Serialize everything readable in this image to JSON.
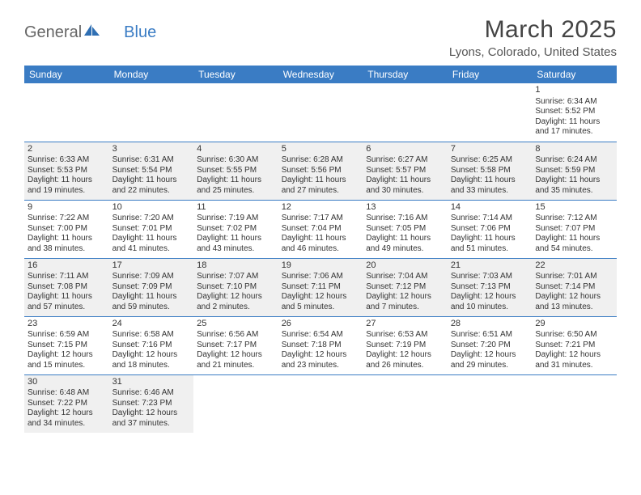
{
  "logo": {
    "text_general": "General",
    "text_blue": "Blue"
  },
  "title": "March 2025",
  "location": "Lyons, Colorado, United States",
  "header_bg": "#3a7cc4",
  "header_fg": "#ffffff",
  "alt_row_bg": "#f0f0f0",
  "border_color": "#3a7cc4",
  "font_family": "Arial, Helvetica, sans-serif",
  "day_headers": [
    "Sunday",
    "Monday",
    "Tuesday",
    "Wednesday",
    "Thursday",
    "Friday",
    "Saturday"
  ],
  "weeks": [
    {
      "alt": false,
      "days": [
        null,
        null,
        null,
        null,
        null,
        null,
        {
          "n": "1",
          "sunrise": "Sunrise: 6:34 AM",
          "sunset": "Sunset: 5:52 PM",
          "daylight1": "Daylight: 11 hours",
          "daylight2": "and 17 minutes."
        }
      ]
    },
    {
      "alt": true,
      "days": [
        {
          "n": "2",
          "sunrise": "Sunrise: 6:33 AM",
          "sunset": "Sunset: 5:53 PM",
          "daylight1": "Daylight: 11 hours",
          "daylight2": "and 19 minutes."
        },
        {
          "n": "3",
          "sunrise": "Sunrise: 6:31 AM",
          "sunset": "Sunset: 5:54 PM",
          "daylight1": "Daylight: 11 hours",
          "daylight2": "and 22 minutes."
        },
        {
          "n": "4",
          "sunrise": "Sunrise: 6:30 AM",
          "sunset": "Sunset: 5:55 PM",
          "daylight1": "Daylight: 11 hours",
          "daylight2": "and 25 minutes."
        },
        {
          "n": "5",
          "sunrise": "Sunrise: 6:28 AM",
          "sunset": "Sunset: 5:56 PM",
          "daylight1": "Daylight: 11 hours",
          "daylight2": "and 27 minutes."
        },
        {
          "n": "6",
          "sunrise": "Sunrise: 6:27 AM",
          "sunset": "Sunset: 5:57 PM",
          "daylight1": "Daylight: 11 hours",
          "daylight2": "and 30 minutes."
        },
        {
          "n": "7",
          "sunrise": "Sunrise: 6:25 AM",
          "sunset": "Sunset: 5:58 PM",
          "daylight1": "Daylight: 11 hours",
          "daylight2": "and 33 minutes."
        },
        {
          "n": "8",
          "sunrise": "Sunrise: 6:24 AM",
          "sunset": "Sunset: 5:59 PM",
          "daylight1": "Daylight: 11 hours",
          "daylight2": "and 35 minutes."
        }
      ]
    },
    {
      "alt": false,
      "days": [
        {
          "n": "9",
          "sunrise": "Sunrise: 7:22 AM",
          "sunset": "Sunset: 7:00 PM",
          "daylight1": "Daylight: 11 hours",
          "daylight2": "and 38 minutes."
        },
        {
          "n": "10",
          "sunrise": "Sunrise: 7:20 AM",
          "sunset": "Sunset: 7:01 PM",
          "daylight1": "Daylight: 11 hours",
          "daylight2": "and 41 minutes."
        },
        {
          "n": "11",
          "sunrise": "Sunrise: 7:19 AM",
          "sunset": "Sunset: 7:02 PM",
          "daylight1": "Daylight: 11 hours",
          "daylight2": "and 43 minutes."
        },
        {
          "n": "12",
          "sunrise": "Sunrise: 7:17 AM",
          "sunset": "Sunset: 7:04 PM",
          "daylight1": "Daylight: 11 hours",
          "daylight2": "and 46 minutes."
        },
        {
          "n": "13",
          "sunrise": "Sunrise: 7:16 AM",
          "sunset": "Sunset: 7:05 PM",
          "daylight1": "Daylight: 11 hours",
          "daylight2": "and 49 minutes."
        },
        {
          "n": "14",
          "sunrise": "Sunrise: 7:14 AM",
          "sunset": "Sunset: 7:06 PM",
          "daylight1": "Daylight: 11 hours",
          "daylight2": "and 51 minutes."
        },
        {
          "n": "15",
          "sunrise": "Sunrise: 7:12 AM",
          "sunset": "Sunset: 7:07 PM",
          "daylight1": "Daylight: 11 hours",
          "daylight2": "and 54 minutes."
        }
      ]
    },
    {
      "alt": true,
      "days": [
        {
          "n": "16",
          "sunrise": "Sunrise: 7:11 AM",
          "sunset": "Sunset: 7:08 PM",
          "daylight1": "Daylight: 11 hours",
          "daylight2": "and 57 minutes."
        },
        {
          "n": "17",
          "sunrise": "Sunrise: 7:09 AM",
          "sunset": "Sunset: 7:09 PM",
          "daylight1": "Daylight: 11 hours",
          "daylight2": "and 59 minutes."
        },
        {
          "n": "18",
          "sunrise": "Sunrise: 7:07 AM",
          "sunset": "Sunset: 7:10 PM",
          "daylight1": "Daylight: 12 hours",
          "daylight2": "and 2 minutes."
        },
        {
          "n": "19",
          "sunrise": "Sunrise: 7:06 AM",
          "sunset": "Sunset: 7:11 PM",
          "daylight1": "Daylight: 12 hours",
          "daylight2": "and 5 minutes."
        },
        {
          "n": "20",
          "sunrise": "Sunrise: 7:04 AM",
          "sunset": "Sunset: 7:12 PM",
          "daylight1": "Daylight: 12 hours",
          "daylight2": "and 7 minutes."
        },
        {
          "n": "21",
          "sunrise": "Sunrise: 7:03 AM",
          "sunset": "Sunset: 7:13 PM",
          "daylight1": "Daylight: 12 hours",
          "daylight2": "and 10 minutes."
        },
        {
          "n": "22",
          "sunrise": "Sunrise: 7:01 AM",
          "sunset": "Sunset: 7:14 PM",
          "daylight1": "Daylight: 12 hours",
          "daylight2": "and 13 minutes."
        }
      ]
    },
    {
      "alt": false,
      "days": [
        {
          "n": "23",
          "sunrise": "Sunrise: 6:59 AM",
          "sunset": "Sunset: 7:15 PM",
          "daylight1": "Daylight: 12 hours",
          "daylight2": "and 15 minutes."
        },
        {
          "n": "24",
          "sunrise": "Sunrise: 6:58 AM",
          "sunset": "Sunset: 7:16 PM",
          "daylight1": "Daylight: 12 hours",
          "daylight2": "and 18 minutes."
        },
        {
          "n": "25",
          "sunrise": "Sunrise: 6:56 AM",
          "sunset": "Sunset: 7:17 PM",
          "daylight1": "Daylight: 12 hours",
          "daylight2": "and 21 minutes."
        },
        {
          "n": "26",
          "sunrise": "Sunrise: 6:54 AM",
          "sunset": "Sunset: 7:18 PM",
          "daylight1": "Daylight: 12 hours",
          "daylight2": "and 23 minutes."
        },
        {
          "n": "27",
          "sunrise": "Sunrise: 6:53 AM",
          "sunset": "Sunset: 7:19 PM",
          "daylight1": "Daylight: 12 hours",
          "daylight2": "and 26 minutes."
        },
        {
          "n": "28",
          "sunrise": "Sunrise: 6:51 AM",
          "sunset": "Sunset: 7:20 PM",
          "daylight1": "Daylight: 12 hours",
          "daylight2": "and 29 minutes."
        },
        {
          "n": "29",
          "sunrise": "Sunrise: 6:50 AM",
          "sunset": "Sunset: 7:21 PM",
          "daylight1": "Daylight: 12 hours",
          "daylight2": "and 31 minutes."
        }
      ]
    },
    {
      "alt": true,
      "last": true,
      "days": [
        {
          "n": "30",
          "sunrise": "Sunrise: 6:48 AM",
          "sunset": "Sunset: 7:22 PM",
          "daylight1": "Daylight: 12 hours",
          "daylight2": "and 34 minutes."
        },
        {
          "n": "31",
          "sunrise": "Sunrise: 6:46 AM",
          "sunset": "Sunset: 7:23 PM",
          "daylight1": "Daylight: 12 hours",
          "daylight2": "and 37 minutes."
        },
        null,
        null,
        null,
        null,
        null
      ]
    }
  ]
}
